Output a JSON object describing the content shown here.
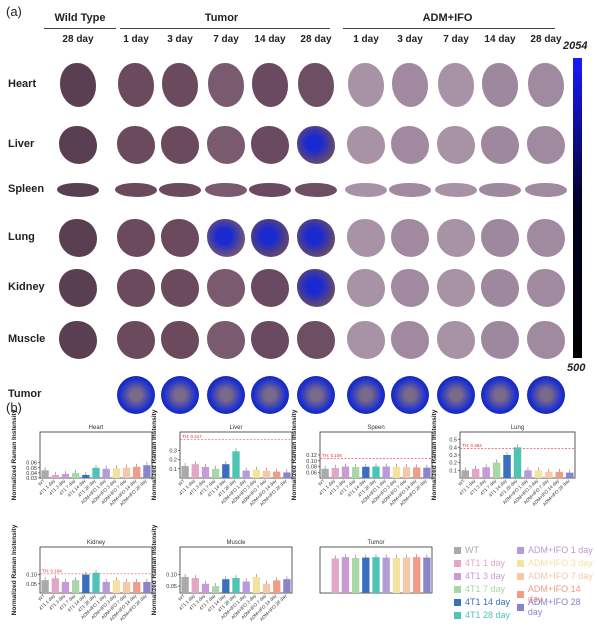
{
  "panel_a": {
    "letter": "(a)",
    "groups": [
      {
        "label": "Wild Type"
      },
      {
        "label": "Tumor"
      },
      {
        "label": "ADM+IFO"
      }
    ],
    "days": [
      "28 day",
      "1 day",
      "3 day",
      "7 day",
      "14 day",
      "28 day",
      "1 day",
      "3 day",
      "7 day",
      "14 day",
      "28 day"
    ],
    "rows": [
      "Heart",
      "Liver",
      "Spleen",
      "Lung",
      "Kidney",
      "Muscle",
      "Tumor"
    ],
    "colorbar": {
      "max": "2054",
      "min": "500"
    }
  },
  "panel_b": {
    "letter": "(b)",
    "legend": [
      {
        "label": "WT",
        "color": "#aaaaaa"
      },
      {
        "label": "4T1 1 day",
        "color": "#e3a6c6"
      },
      {
        "label": "4T1 3 day",
        "color": "#c89ad6"
      },
      {
        "label": "4T1 7 day",
        "color": "#a9d7a9"
      },
      {
        "label": "4T1 14 day",
        "color": "#3a6fc0"
      },
      {
        "label": "4T1 28 day",
        "color": "#4fc4b4"
      },
      {
        "label": "ADM+IFO 1 day",
        "color": "#b79ad8"
      },
      {
        "label": "ADM+IFO 3 day",
        "color": "#f4e2a0"
      },
      {
        "label": "ADM+IFO 7 day",
        "color": "#f6c8a8"
      },
      {
        "label": "ADM+IFO 14 day",
        "color": "#f09c88"
      },
      {
        "label": "ADM+IFO 28 day",
        "color": "#8a84c8"
      }
    ]
  },
  "chart_data": [
    {
      "type": "bar",
      "title": "Heart",
      "ylabel": "Normalized Raman Instensity",
      "ylim": [
        0.03,
        0.12
      ],
      "yticks": [
        "0.03",
        "0.04",
        "0.05",
        "0.06"
      ],
      "categories": [
        "WT",
        "4T1 1 day",
        "4T1 3 day",
        "4T1 7 day",
        "4T1 14 day",
        "4T1 28 day",
        "ADM+IFO 1 day",
        "ADM+IFO 3 day",
        "ADM+IFO 7 day",
        "ADM+IFO 14 day",
        "ADM+IFO 28 day"
      ],
      "values": [
        0.045,
        0.036,
        0.038,
        0.04,
        0.036,
        0.05,
        0.048,
        0.049,
        0.05,
        0.052,
        0.055
      ],
      "threshold_label": ""
    },
    {
      "type": "bar",
      "title": "Liver",
      "ylabel": "Normalized Raman Instensity",
      "ylim": [
        0.0,
        0.5
      ],
      "yticks": [
        "0.1",
        "0.2",
        "0.3"
      ],
      "categories": [
        "WT",
        "4T1 1 day",
        "4T1 3 day",
        "4T1 7 day",
        "4T1 14 day",
        "4T1 28 day",
        "ADM+IFO 1 day",
        "ADM+IFO 3 day",
        "ADM+IFO 7 day",
        "ADM+IFO 14 day",
        "ADM+IFO 28 day"
      ],
      "values": [
        0.13,
        0.15,
        0.12,
        0.1,
        0.15,
        0.29,
        0.08,
        0.09,
        0.08,
        0.07,
        0.06
      ],
      "threshold_label": "TH: 0.417",
      "threshold": 0.417
    },
    {
      "type": "bar",
      "title": "Speen",
      "ylabel": "Normalized Raman Instensity",
      "ylim": [
        0.04,
        0.2
      ],
      "yticks": [
        "0.06",
        "0.08",
        "0.10",
        "0.12"
      ],
      "categories": [
        "WT",
        "4T1 1 day",
        "4T1 3 day",
        "4T1 7 day",
        "4T1 14 day",
        "4T1 28 day",
        "ADM+IFO 1 day",
        "ADM+IFO 3 day",
        "ADM+IFO 7 day",
        "ADM+IFO 14 day",
        "ADM+IFO 28 day"
      ],
      "values": [
        0.072,
        0.075,
        0.08,
        0.078,
        0.079,
        0.08,
        0.08,
        0.079,
        0.078,
        0.077,
        0.076
      ],
      "threshold_label": "TH: 0.108",
      "threshold": 0.108
    },
    {
      "type": "bar",
      "title": "Lung",
      "ylabel": "Normalized Raman Instensity",
      "ylim": [
        0.0,
        0.6
      ],
      "yticks": [
        "0.1",
        "0.2",
        "0.3",
        "0.4",
        "0.5"
      ],
      "categories": [
        "WT",
        "4T1 1 day",
        "4T1 3 day",
        "4T1 7 day",
        "4T1 14 day",
        "4T1 28 day",
        "ADM+IFO 1 day",
        "ADM+IFO 3 day",
        "ADM+IFO 7 day",
        "ADM+IFO 14 day",
        "ADM+IFO 28 day"
      ],
      "values": [
        0.1,
        0.12,
        0.14,
        0.2,
        0.3,
        0.4,
        0.1,
        0.1,
        0.08,
        0.08,
        0.07
      ],
      "threshold_label": "TH: 0.384",
      "threshold": 0.384
    },
    {
      "type": "bar",
      "title": "Kidney",
      "ylabel": "Normalized Raman Instensity",
      "ylim": [
        0.0,
        0.25
      ],
      "yticks": [
        "0.05",
        "0.10"
      ],
      "categories": [
        "WT",
        "4T1 1 day",
        "4T1 3 day",
        "4T1 7 day",
        "4T1 14 day",
        "4T1 28 day",
        "ADM+IFO 1 day",
        "ADM+IFO 3 day",
        "ADM+IFO 7 day",
        "ADM+IFO 14 day",
        "ADM+IFO 28 day"
      ],
      "values": [
        0.07,
        0.08,
        0.06,
        0.07,
        0.1,
        0.11,
        0.06,
        0.07,
        0.06,
        0.06,
        0.06
      ],
      "threshold_label": "TH: 0.104",
      "threshold": 0.104
    },
    {
      "type": "bar",
      "title": "Muscle",
      "ylabel": "Normalized Raman Instensity",
      "ylim": [
        0.02,
        0.22
      ],
      "yticks": [
        "0.05",
        "0.10"
      ],
      "categories": [
        "WT",
        "4T1 1 day",
        "4T1 3 day",
        "4T1 7 day",
        "4T1 14 day",
        "4T1 28 day",
        "ADM+IFO 1 day",
        "ADM+IFO 3 day",
        "ADM+IFO 7 day",
        "ADM+IFO 14 day",
        "ADM+IFO 28 day"
      ],
      "values": [
        0.09,
        0.085,
        0.06,
        0.05,
        0.08,
        0.085,
        0.07,
        0.09,
        0.06,
        0.075,
        0.08
      ],
      "threshold_label": ""
    },
    {
      "type": "bar",
      "title": "Tumor",
      "ylabel": "",
      "ylim": [
        0.0,
        1.0
      ],
      "yticks": [],
      "categories": [
        "WT",
        "4T1 1 day",
        "4T1 3 day",
        "4T1 7 day",
        "4T1 14 day",
        "4T1 28 day",
        "ADM+IFO 1 day",
        "ADM+IFO 3 day",
        "ADM+IFO 7 day",
        "ADM+IFO 14 day",
        "ADM+IFO 28 day"
      ],
      "values": [
        0,
        0.75,
        0.78,
        0.76,
        0.77,
        0.78,
        0.77,
        0.76,
        0.77,
        0.78,
        0.77
      ],
      "threshold_label": ""
    }
  ]
}
